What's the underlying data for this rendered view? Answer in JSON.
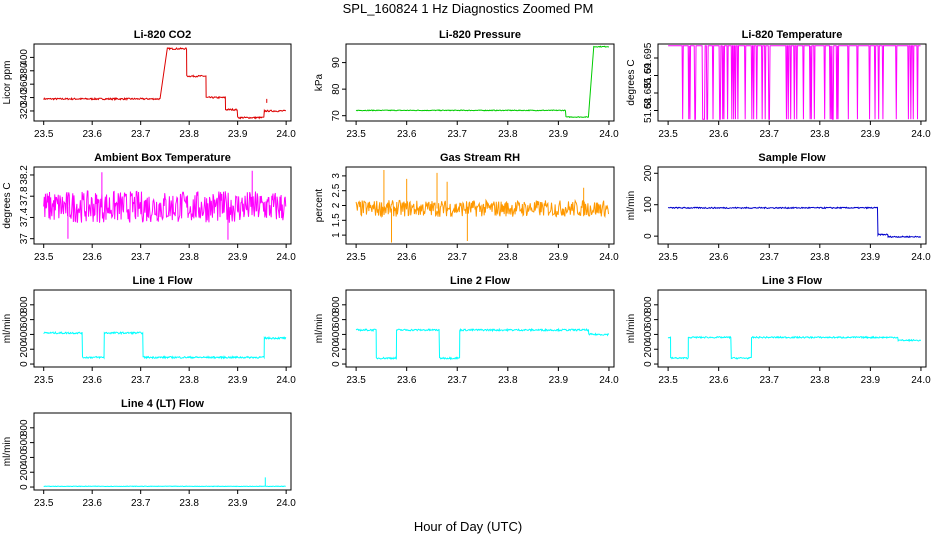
{
  "title": "SPL_160824  1 Hz Diagnostics Zoomed PM",
  "xlabel": "Hour of Day (UTC)",
  "chart_data": [
    {
      "type": "line",
      "title": "Li-820 CO2",
      "ylabel": "Licor ppm",
      "color": "#dd0000",
      "x_ticks": [
        "23.5",
        "23.6",
        "23.7",
        "23.8",
        "23.9",
        "24.0"
      ],
      "xlim": [
        23.48,
        24.01
      ],
      "y_ticks": [
        320,
        340,
        360,
        380,
        400
      ],
      "ylim": [
        305,
        420
      ],
      "series": [
        {
          "segments": [
            [
              23.5,
              23.74,
              338
            ],
            [
              23.755,
              23.795,
              413
            ],
            [
              23.795,
              23.835,
              372
            ],
            [
              23.835,
              23.875,
              340
            ],
            [
              23.875,
              23.9,
              322
            ],
            [
              23.9,
              23.955,
              310
            ],
            [
              23.955,
              24.0,
              320
            ]
          ],
          "noise": 1.2,
          "spikes": [
            [
              23.96,
              332
            ]
          ]
        }
      ]
    },
    {
      "type": "line",
      "title": "Li-820 Pressure",
      "ylabel": "kPa",
      "color": "#00cc00",
      "x_ticks": [
        "23.5",
        "23.6",
        "23.7",
        "23.8",
        "23.9",
        "24.0"
      ],
      "xlim": [
        23.48,
        24.01
      ],
      "y_ticks": [
        70,
        80,
        90
      ],
      "ylim": [
        68,
        97
      ],
      "series": [
        {
          "segments": [
            [
              23.5,
              23.915,
              72
            ],
            [
              23.915,
              23.96,
              69.5
            ],
            [
              23.97,
              24.0,
              96
            ]
          ],
          "noise": 0.15,
          "spikes": []
        }
      ]
    },
    {
      "type": "line",
      "title": "Li-820 Temperature",
      "ylabel": "degrees C",
      "color": "#ff00ff",
      "x_ticks": [
        "23.5",
        "23.6",
        "23.7",
        "23.8",
        "23.9",
        "24.0"
      ],
      "xlim": [
        23.48,
        24.01
      ],
      "y_ticks": [
        51.68,
        51.685,
        51.69,
        51.695
      ],
      "ylim": [
        51.677,
        51.699
      ],
      "series": [
        {
          "segments": [
            [
              23.5,
              24.0,
              51.6985
            ]
          ],
          "noise": 0,
          "low": 51.6775,
          "switch_density": 0.12
        }
      ]
    },
    {
      "type": "line",
      "title": "Ambient Box Temperature",
      "ylabel": "degrees C",
      "color": "#ff00ff",
      "x_ticks": [
        "23.5",
        "23.6",
        "23.7",
        "23.8",
        "23.9",
        "24.0"
      ],
      "xlim": [
        23.48,
        24.01
      ],
      "y_ticks": [
        37.0,
        37.4,
        37.8,
        38.2
      ],
      "ylim": [
        36.9,
        38.35
      ],
      "series": [
        {
          "segments": [
            [
              23.5,
              24.0,
              37.6
            ]
          ],
          "noise": 0.3,
          "spikes": [
            [
              23.55,
              37.0
            ],
            [
              23.62,
              38.25
            ],
            [
              23.88,
              36.98
            ],
            [
              23.93,
              38.28
            ]
          ]
        }
      ]
    },
    {
      "type": "line",
      "title": "Gas Stream RH",
      "ylabel": "percent",
      "color": "#ff9900",
      "x_ticks": [
        "23.5",
        "23.6",
        "23.7",
        "23.8",
        "23.9",
        "24.0"
      ],
      "xlim": [
        23.48,
        24.01
      ],
      "y_ticks": [
        1.0,
        1.5,
        2.0,
        2.5,
        3.0
      ],
      "ylim": [
        0.7,
        3.3
      ],
      "series": [
        {
          "segments": [
            [
              23.5,
              24.0,
              1.9
            ]
          ],
          "noise": 0.28,
          "spikes": [
            [
              23.555,
              3.2
            ],
            [
              23.57,
              0.75
            ],
            [
              23.6,
              2.9
            ],
            [
              23.66,
              3.1
            ],
            [
              23.68,
              2.8
            ],
            [
              23.72,
              0.8
            ],
            [
              23.95,
              2.6
            ]
          ]
        }
      ]
    },
    {
      "type": "line",
      "title": "Sample Flow",
      "ylabel": "ml/min",
      "color": "#0000cc",
      "x_ticks": [
        "23.5",
        "23.6",
        "23.7",
        "23.8",
        "23.9",
        "24.0"
      ],
      "xlim": [
        23.48,
        24.01
      ],
      "y_ticks": [
        0,
        100,
        200
      ],
      "ylim": [
        -25,
        220
      ],
      "series": [
        {
          "segments": [
            [
              23.5,
              23.915,
              90
            ],
            [
              23.915,
              23.935,
              5
            ],
            [
              23.935,
              24.0,
              -2
            ]
          ],
          "noise": 2,
          "spikes": []
        }
      ]
    },
    {
      "type": "line",
      "title": "Line 1 Flow",
      "ylabel": "ml/min",
      "color": "#00ffff",
      "x_ticks": [
        "23.5",
        "23.6",
        "23.7",
        "23.8",
        "23.9",
        "24.0"
      ],
      "xlim": [
        23.48,
        24.01
      ],
      "y_ticks": [
        0,
        200,
        400,
        600,
        800
      ],
      "ylim": [
        -40,
        1000
      ],
      "series": [
        {
          "segments": [
            [
              23.5,
              23.58,
              420
            ],
            [
              23.58,
              23.625,
              90
            ],
            [
              23.625,
              23.705,
              420
            ],
            [
              23.705,
              23.955,
              90
            ],
            [
              23.955,
              24.0,
              350
            ]
          ],
          "noise": 12,
          "spikes": []
        }
      ]
    },
    {
      "type": "line",
      "title": "Line 2 Flow",
      "ylabel": "ml/min",
      "color": "#00ffff",
      "x_ticks": [
        "23.5",
        "23.6",
        "23.7",
        "23.8",
        "23.9",
        "24.0"
      ],
      "xlim": [
        23.48,
        24.01
      ],
      "y_ticks": [
        0,
        200,
        400,
        600,
        800
      ],
      "ylim": [
        -40,
        1000
      ],
      "series": [
        {
          "segments": [
            [
              23.5,
              23.54,
              460
            ],
            [
              23.54,
              23.58,
              80
            ],
            [
              23.58,
              23.665,
              460
            ],
            [
              23.665,
              23.705,
              80
            ],
            [
              23.705,
              23.96,
              460
            ],
            [
              23.96,
              24.0,
              400
            ]
          ],
          "noise": 12,
          "spikes": []
        }
      ]
    },
    {
      "type": "line",
      "title": "Line 3 Flow",
      "ylabel": "ml/min",
      "color": "#00ffff",
      "x_ticks": [
        "23.5",
        "23.6",
        "23.7",
        "23.8",
        "23.9",
        "24.0"
      ],
      "xlim": [
        23.48,
        24.01
      ],
      "y_ticks": [
        0,
        200,
        400,
        600,
        800
      ],
      "ylim": [
        -40,
        1000
      ],
      "series": [
        {
          "segments": [
            [
              23.5,
              23.505,
              360
            ],
            [
              23.505,
              23.54,
              80
            ],
            [
              23.54,
              23.625,
              360
            ],
            [
              23.625,
              23.665,
              80
            ],
            [
              23.665,
              23.955,
              360
            ],
            [
              23.955,
              24.0,
              320
            ]
          ],
          "noise": 10,
          "spikes": []
        }
      ]
    },
    {
      "type": "line",
      "title": "Line 4 (LT) Flow",
      "ylabel": "ml/min",
      "color": "#00ffff",
      "x_ticks": [
        "23.5",
        "23.6",
        "23.7",
        "23.8",
        "23.9",
        "24.0"
      ],
      "xlim": [
        23.48,
        24.01
      ],
      "y_ticks": [
        0,
        200,
        400,
        600,
        800
      ],
      "ylim": [
        -40,
        1000
      ],
      "series": [
        {
          "segments": [
            [
              23.5,
              24.0,
              10
            ]
          ],
          "noise": 3,
          "spikes": [
            [
              23.957,
              130
            ]
          ]
        }
      ]
    }
  ]
}
